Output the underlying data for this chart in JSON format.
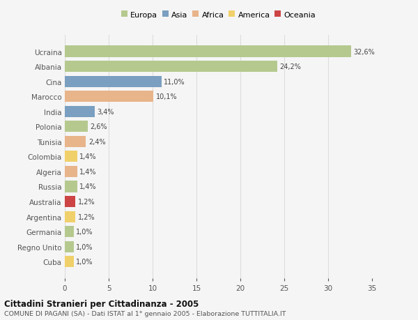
{
  "categories": [
    "Ucraina",
    "Albania",
    "Cina",
    "Marocco",
    "India",
    "Polonia",
    "Tunisia",
    "Colombia",
    "Algeria",
    "Russia",
    "Australia",
    "Argentina",
    "Germania",
    "Regno Unito",
    "Cuba"
  ],
  "values": [
    32.6,
    24.2,
    11.0,
    10.1,
    3.4,
    2.6,
    2.4,
    1.4,
    1.4,
    1.4,
    1.2,
    1.2,
    1.0,
    1.0,
    1.0
  ],
  "labels": [
    "32,6%",
    "24,2%",
    "11,0%",
    "10,1%",
    "3,4%",
    "2,6%",
    "2,4%",
    "1,4%",
    "1,4%",
    "1,4%",
    "1,2%",
    "1,2%",
    "1,0%",
    "1,0%",
    "1,0%"
  ],
  "continents": [
    "Europa",
    "Europa",
    "Asia",
    "Africa",
    "Asia",
    "Europa",
    "Africa",
    "America",
    "Africa",
    "Europa",
    "Oceania",
    "America",
    "Europa",
    "Europa",
    "America"
  ],
  "continent_colors": {
    "Europa": "#b5c98e",
    "Asia": "#7a9fc0",
    "Africa": "#e8b48a",
    "America": "#f0d06a",
    "Oceania": "#cc4444"
  },
  "legend_order": [
    "Europa",
    "Asia",
    "Africa",
    "America",
    "Oceania"
  ],
  "title": "Cittadini Stranieri per Cittadinanza - 2005",
  "subtitle": "COMUNE DI PAGANI (SA) - Dati ISTAT al 1° gennaio 2005 - Elaborazione TUTTITALIA.IT",
  "xlim": [
    0,
    35
  ],
  "xticks": [
    0,
    5,
    10,
    15,
    20,
    25,
    30,
    35
  ],
  "background_color": "#f5f5f5",
  "plot_bg_color": "#f5f5f5",
  "grid_color": "#dddddd",
  "bar_height": 0.75
}
